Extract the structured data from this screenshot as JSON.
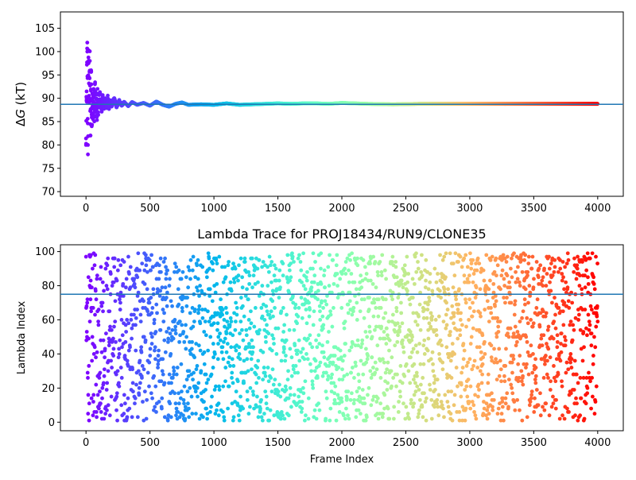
{
  "chart_data": [
    {
      "type": "scatter",
      "title": "",
      "xlabel": "",
      "ylabel_prefix": "Δ",
      "ylabel_var": "G",
      "ylabel_suffix": " (kT)",
      "xlim": [
        -200,
        4200
      ],
      "ylim": [
        69,
        108.5
      ],
      "xticks": [
        0,
        500,
        1000,
        1500,
        2000,
        2500,
        3000,
        3500,
        4000
      ],
      "yticks": [
        70,
        75,
        80,
        85,
        90,
        95,
        100,
        105
      ],
      "hline": 88.7,
      "colormap": "rainbow",
      "n_frames": 4000,
      "series": [
        {
          "description_points": "running free energy estimate per frame, converging to ~88.8",
          "x": [
            0,
            5,
            10,
            15,
            20,
            25,
            30,
            35,
            40,
            45,
            50,
            55,
            60,
            65,
            70,
            75,
            80,
            85,
            90,
            95,
            100,
            110,
            120,
            130,
            140,
            150,
            160,
            170,
            180,
            190,
            200,
            220,
            240,
            260,
            280,
            300,
            330,
            360,
            400,
            450,
            500,
            550,
            600,
            650,
            700,
            750,
            800,
            900,
            1000,
            1100,
            1200,
            1300,
            1400,
            1500,
            1600,
            1700,
            1800,
            1900,
            2000,
            2200,
            2400,
            2600,
            2800,
            3000,
            3200,
            3400,
            3600,
            3800,
            4000
          ],
          "y": [
            80,
            90,
            100,
            80,
            100.3,
            90,
            98,
            82,
            96,
            84,
            90,
            86,
            92,
            86,
            93,
            88,
            90,
            86,
            91,
            87,
            89,
            90.5,
            87.5,
            90,
            88,
            89.5,
            88.5,
            90,
            88,
            89.5,
            88.3,
            89.8,
            88.2,
            89.5,
            88.5,
            89.2,
            88.3,
            89.2,
            88.6,
            89.0,
            88.4,
            89.3,
            88.6,
            88.2,
            88.8,
            89.1,
            88.6,
            88.7,
            88.6,
            88.9,
            88.6,
            88.7,
            88.8,
            88.9,
            88.8,
            88.9,
            88.9,
            88.8,
            89.0,
            88.8,
            88.7,
            88.8,
            88.8,
            88.8,
            88.8,
            88.8,
            88.8,
            88.8,
            88.8
          ]
        }
      ]
    },
    {
      "type": "scatter",
      "title": "Lambda Trace for PROJ18434/RUN9/CLONE35",
      "xlabel": "Frame Index",
      "ylabel": "Lambda Index",
      "xlim": [
        -200,
        4200
      ],
      "ylim": [
        -5,
        104
      ],
      "xticks": [
        0,
        500,
        1000,
        1500,
        2000,
        2500,
        3000,
        3500,
        4000
      ],
      "yticks": [
        0,
        20,
        40,
        60,
        80,
        100
      ],
      "hline": 75,
      "colormap": "rainbow",
      "n_frames": 4000,
      "lambda_range": [
        1,
        99
      ],
      "sample_every": 1.6
    }
  ]
}
